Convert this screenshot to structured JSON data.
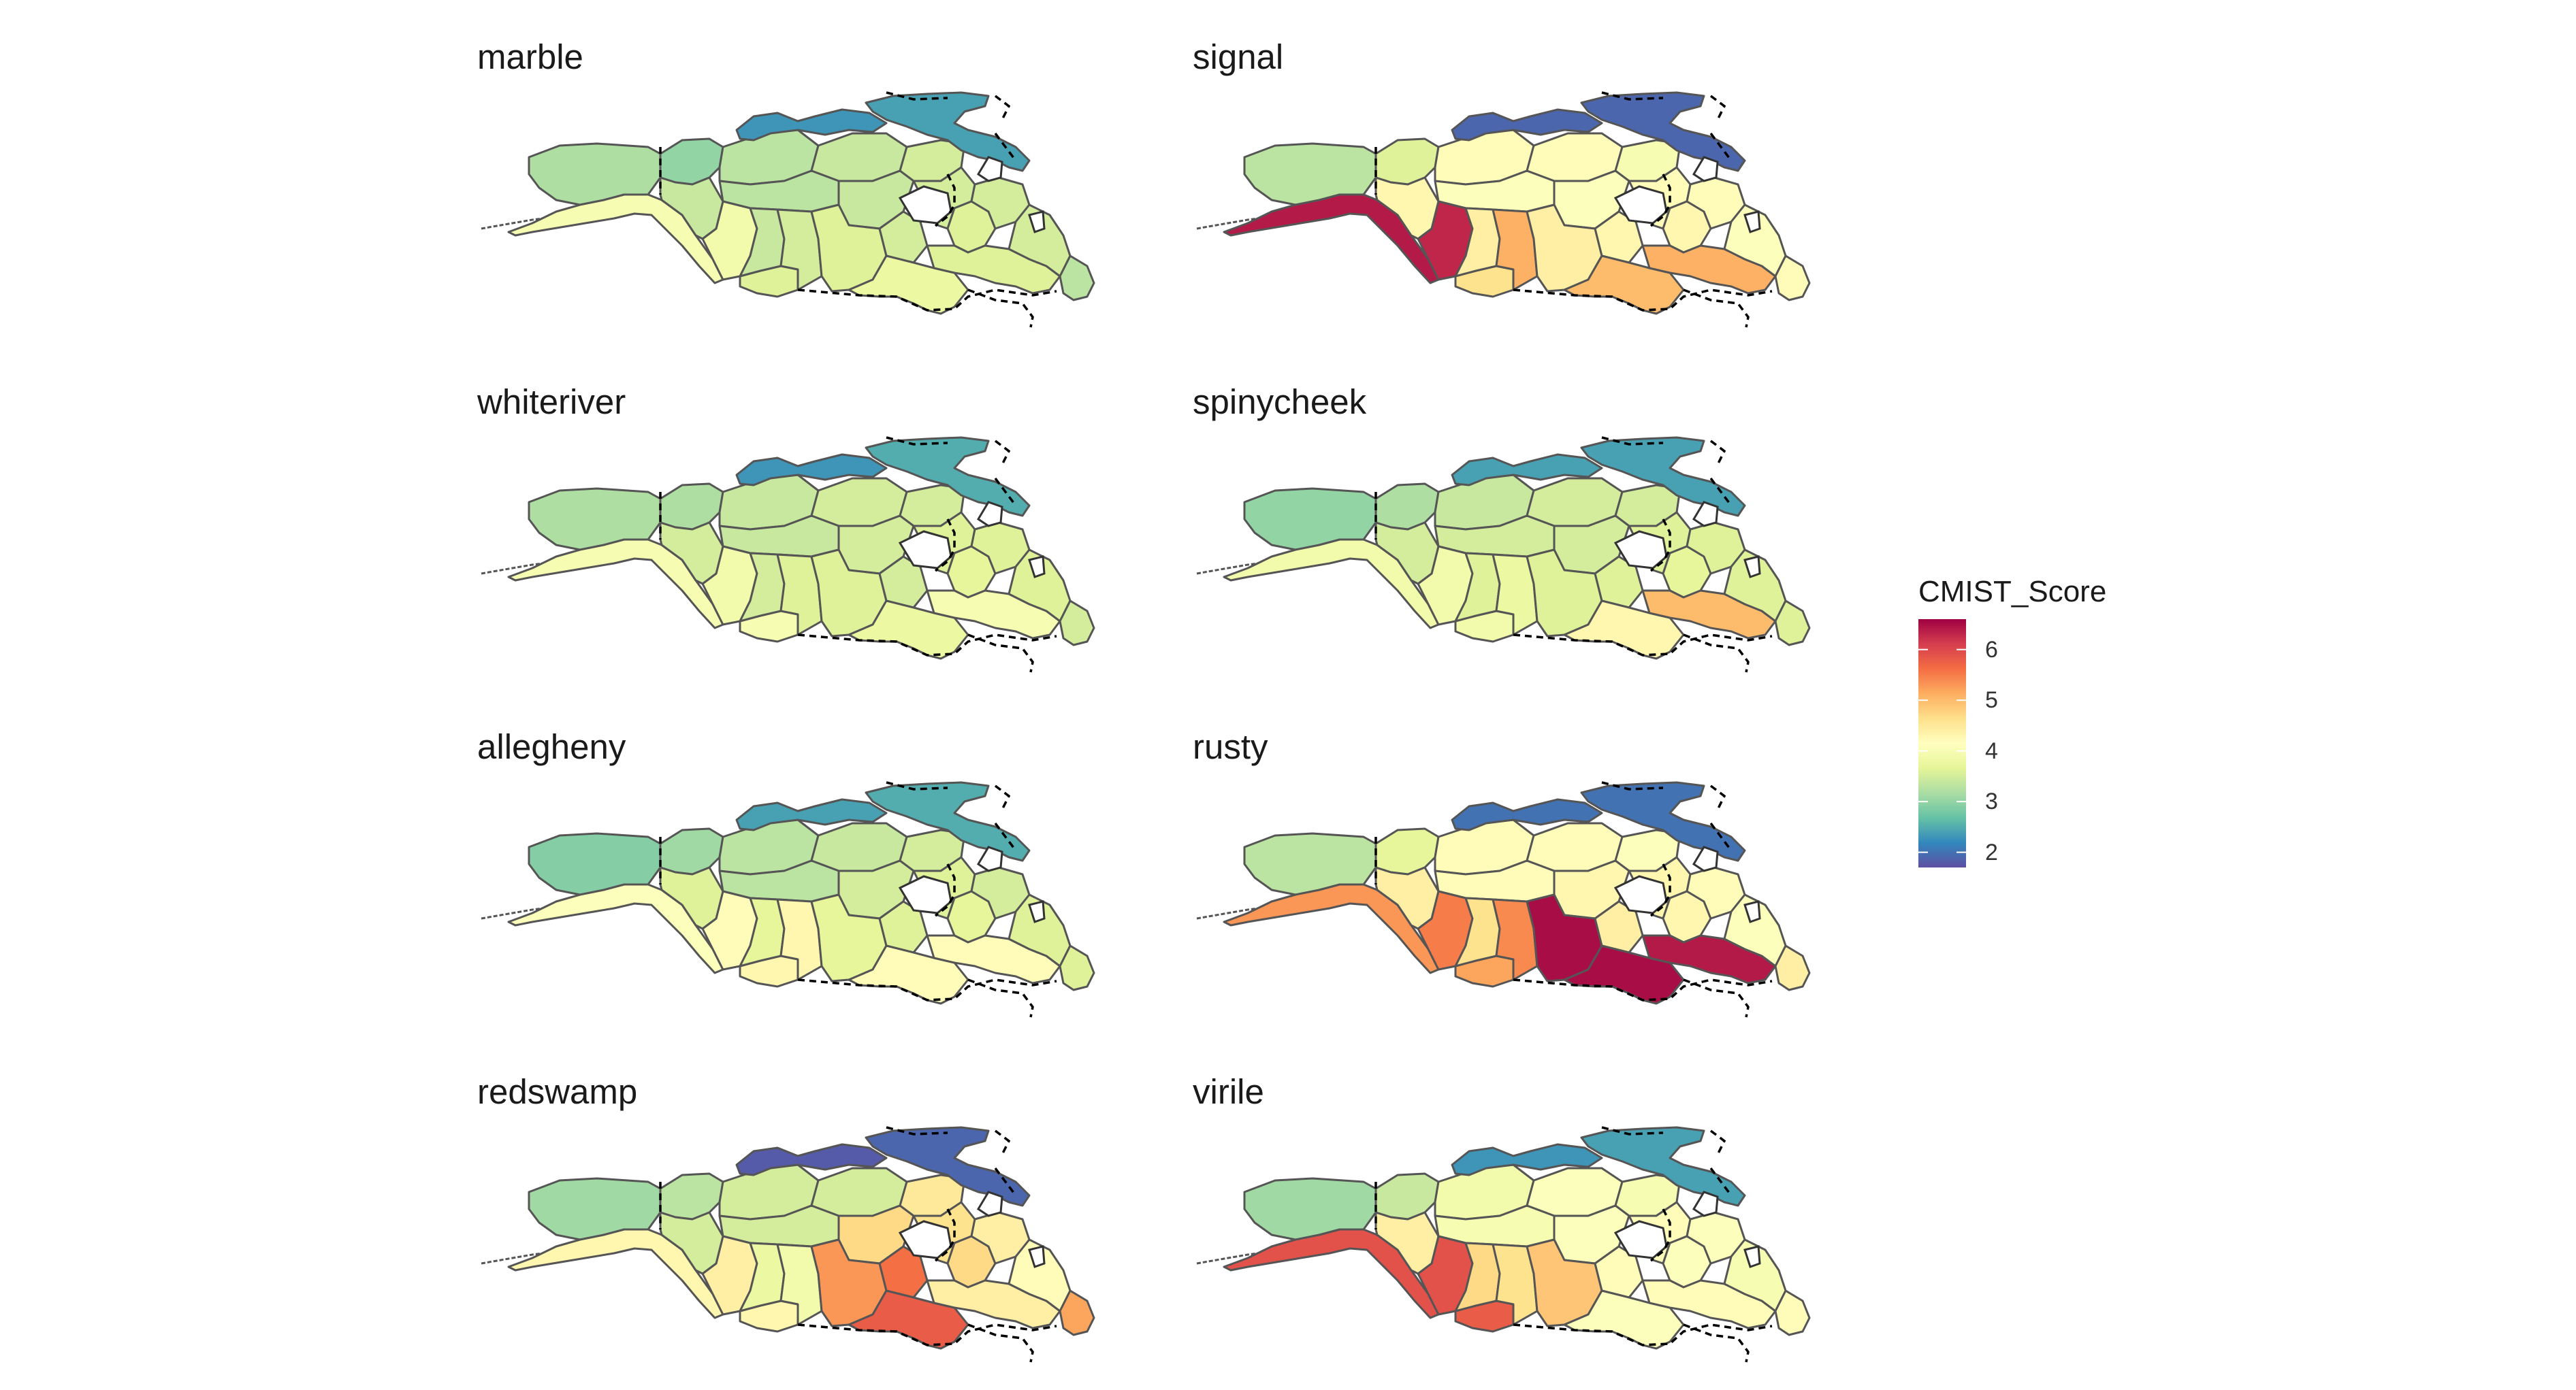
{
  "figure": {
    "legend": {
      "title": "CMIST_Score",
      "min": 1.7,
      "max": 6.6,
      "ticks": [
        {
          "value": 6,
          "label": "6"
        },
        {
          "value": 5,
          "label": "5"
        },
        {
          "value": 4,
          "label": "4"
        },
        {
          "value": 3,
          "label": "3"
        },
        {
          "value": 2,
          "label": "2"
        }
      ],
      "palette": [
        "#5E4FA2",
        "#3288BD",
        "#66C2A5",
        "#ABDDA4",
        "#E6F598",
        "#FFFFBF",
        "#FEE08B",
        "#FDAE61",
        "#F46D43",
        "#D53E4F",
        "#9E0142"
      ]
    },
    "region_order": [
      "alaska_interior",
      "alaska_coast",
      "yukon_north",
      "nwt_west",
      "nwt_central",
      "nwt_east",
      "nunavut_west",
      "hudson_west",
      "hudson_east",
      "arctic_islands",
      "baffin",
      "bc_coast",
      "bc_north",
      "bc_south",
      "alberta",
      "saskatchewan",
      "manitoba",
      "ontario_north",
      "ontario_south",
      "quebec_west",
      "quebec_north",
      "quebec_south",
      "labrador",
      "maritimes"
    ],
    "panels": [
      {
        "title": "marble",
        "scores": {
          "alaska_interior": 3.2,
          "alaska_coast": 4.0,
          "yukon_north": 3.0,
          "nwt_west": 3.3,
          "nwt_central": 3.4,
          "nwt_east": 3.5,
          "nunavut_west": 3.3,
          "hudson_west": 3.4,
          "hudson_east": 3.5,
          "arctic_islands": 2.3,
          "baffin": 2.4,
          "bc_coast": 3.9,
          "bc_north": 3.4,
          "bc_south": 3.6,
          "alberta": 3.4,
          "saskatchewan": 3.5,
          "manitoba": 3.6,
          "ontario_north": 3.5,
          "ontario_south": 3.8,
          "quebec_west": 3.6,
          "quebec_north": 3.5,
          "quebec_south": 3.6,
          "labrador": 3.5,
          "maritimes": 3.3
        }
      },
      {
        "title": "signal",
        "scores": {
          "alaska_interior": 3.3,
          "alaska_coast": 6.4,
          "yukon_north": 3.6,
          "nwt_west": 4.2,
          "nwt_central": 4.2,
          "nwt_east": 4.0,
          "nunavut_west": 4.1,
          "hudson_west": 4.1,
          "hudson_east": 4.2,
          "arctic_islands": 1.9,
          "baffin": 1.9,
          "bc_coast": 6.3,
          "bc_north": 4.3,
          "bc_south": 4.6,
          "alberta": 4.4,
          "saskatchewan": 5.1,
          "manitoba": 4.4,
          "ontario_north": 4.3,
          "ontario_south": 5.0,
          "quebec_west": 4.3,
          "quebec_north": 4.2,
          "quebec_south": 5.1,
          "labrador": 4.1,
          "maritimes": 4.2
        }
      },
      {
        "title": "whiteriver",
        "scores": {
          "alaska_interior": 3.2,
          "alaska_coast": 4.0,
          "yukon_north": 3.2,
          "nwt_west": 3.4,
          "nwt_central": 3.5,
          "nwt_east": 3.5,
          "nunavut_west": 3.4,
          "hudson_west": 3.5,
          "hudson_east": 3.6,
          "arctic_islands": 2.3,
          "baffin": 2.5,
          "bc_coast": 3.9,
          "bc_north": 3.5,
          "bc_south": 4.0,
          "alberta": 3.5,
          "saskatchewan": 3.6,
          "manitoba": 3.6,
          "ontario_north": 3.5,
          "ontario_south": 3.8,
          "quebec_west": 3.7,
          "quebec_north": 3.6,
          "quebec_south": 4.0,
          "labrador": 3.6,
          "maritimes": 3.5
        }
      },
      {
        "title": "spinycheek",
        "scores": {
          "alaska_interior": 3.0,
          "alaska_coast": 3.9,
          "yukon_north": 3.2,
          "nwt_west": 3.4,
          "nwt_central": 3.5,
          "nwt_east": 3.5,
          "nunavut_west": 3.5,
          "hudson_west": 3.5,
          "hudson_east": 3.6,
          "arctic_islands": 2.4,
          "baffin": 2.4,
          "bc_coast": 3.9,
          "bc_north": 3.5,
          "bc_south": 3.9,
          "alberta": 3.6,
          "saskatchewan": 3.8,
          "manitoba": 3.6,
          "ontario_north": 3.6,
          "ontario_south": 4.3,
          "quebec_west": 3.7,
          "quebec_north": 3.6,
          "quebec_south": 5.0,
          "labrador": 3.6,
          "maritimes": 3.6
        }
      },
      {
        "title": "allegheny",
        "scores": {
          "alaska_interior": 2.9,
          "alaska_coast": 4.1,
          "yukon_north": 3.1,
          "nwt_west": 3.3,
          "nwt_central": 3.4,
          "nwt_east": 3.5,
          "nunavut_west": 3.3,
          "hudson_west": 3.5,
          "hudson_east": 3.6,
          "arctic_islands": 2.4,
          "baffin": 2.5,
          "bc_coast": 4.2,
          "bc_north": 3.6,
          "bc_south": 4.3,
          "alberta": 3.7,
          "saskatchewan": 4.3,
          "manitoba": 3.7,
          "ontario_north": 3.6,
          "ontario_south": 4.2,
          "quebec_west": 3.7,
          "quebec_north": 3.5,
          "quebec_south": 4.2,
          "labrador": 3.6,
          "maritimes": 3.6
        }
      },
      {
        "title": "rusty",
        "scores": {
          "alaska_interior": 3.3,
          "alaska_coast": 5.3,
          "yukon_north": 3.7,
          "nwt_west": 4.2,
          "nwt_central": 4.2,
          "nwt_east": 4.1,
          "nunavut_west": 4.2,
          "hudson_west": 4.3,
          "hudson_east": 4.3,
          "arctic_islands": 2.0,
          "baffin": 2.0,
          "bc_coast": 5.5,
          "bc_north": 4.4,
          "bc_south": 5.2,
          "alberta": 4.6,
          "saskatchewan": 5.4,
          "manitoba": 6.5,
          "ontario_north": 4.4,
          "ontario_south": 6.5,
          "quebec_west": 4.3,
          "quebec_north": 4.2,
          "quebec_south": 6.4,
          "labrador": 4.1,
          "maritimes": 4.4
        }
      },
      {
        "title": "redswamp",
        "scores": {
          "alaska_interior": 3.1,
          "alaska_coast": 4.3,
          "yukon_north": 3.3,
          "nwt_west": 3.5,
          "nwt_central": 3.5,
          "nwt_east": 4.5,
          "nunavut_west": 3.5,
          "hudson_west": 4.7,
          "hudson_east": 4.6,
          "arctic_islands": 1.8,
          "baffin": 1.9,
          "bc_coast": 4.4,
          "bc_north": 3.5,
          "bc_south": 4.3,
          "alberta": 3.8,
          "saskatchewan": 3.9,
          "manitoba": 5.3,
          "ontario_north": 5.6,
          "ontario_south": 5.8,
          "quebec_west": 4.7,
          "quebec_north": 4.4,
          "quebec_south": 4.4,
          "labrador": 4.2,
          "maritimes": 5.2
        }
      },
      {
        "title": "virile",
        "scores": {
          "alaska_interior": 3.1,
          "alaska_coast": 5.9,
          "yukon_north": 3.4,
          "nwt_west": 3.9,
          "nwt_central": 4.1,
          "nwt_east": 4.0,
          "nunavut_west": 4.0,
          "hudson_west": 4.1,
          "hudson_east": 4.2,
          "arctic_islands": 2.3,
          "baffin": 2.4,
          "bc_coast": 5.9,
          "bc_north": 4.4,
          "bc_south": 5.8,
          "alberta": 4.7,
          "saskatchewan": 4.6,
          "manitoba": 4.9,
          "ontario_north": 4.2,
          "ontario_south": 4.1,
          "quebec_west": 4.1,
          "quebec_north": 4.1,
          "quebec_south": 4.2,
          "labrador": 4.0,
          "maritimes": 4.2
        }
      }
    ]
  }
}
